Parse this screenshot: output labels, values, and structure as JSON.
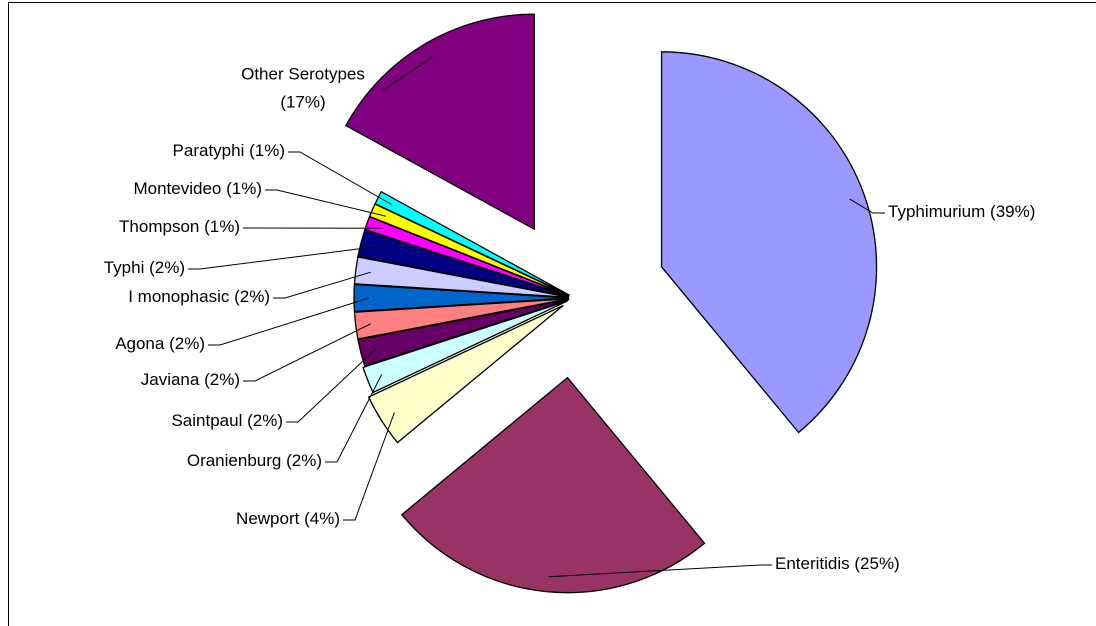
{
  "chart_data": {
    "type": "pie",
    "categories": [
      "Typhimurium",
      "Enteritidis",
      "Newport",
      "Oranienburg",
      "Saintpaul",
      "Javiana",
      "Agona",
      "I monophasic",
      "Typhi",
      "Thompson",
      "Montevideo",
      "Paratyphi",
      "Other Serotypes"
    ],
    "values": [
      39,
      25,
      4,
      2,
      2,
      2,
      2,
      2,
      2,
      1,
      1,
      1,
      17
    ],
    "value_labels": [
      "(39%)",
      "(25%)",
      "(4%)",
      "(2%)",
      "(2%)",
      "(2%)",
      "(2%)",
      "(2%)",
      "(2%)",
      "(1%)",
      "(1%)",
      "(1%)",
      "(17%)"
    ],
    "colors": [
      "#9999ff",
      "#993366",
      "#ffffcc",
      "#ccffff",
      "#660066",
      "#ff8080",
      "#0066cc",
      "#ccccff",
      "#000080",
      "#ff00ff",
      "#ffff00",
      "#00ffff",
      "#800080"
    ]
  }
}
